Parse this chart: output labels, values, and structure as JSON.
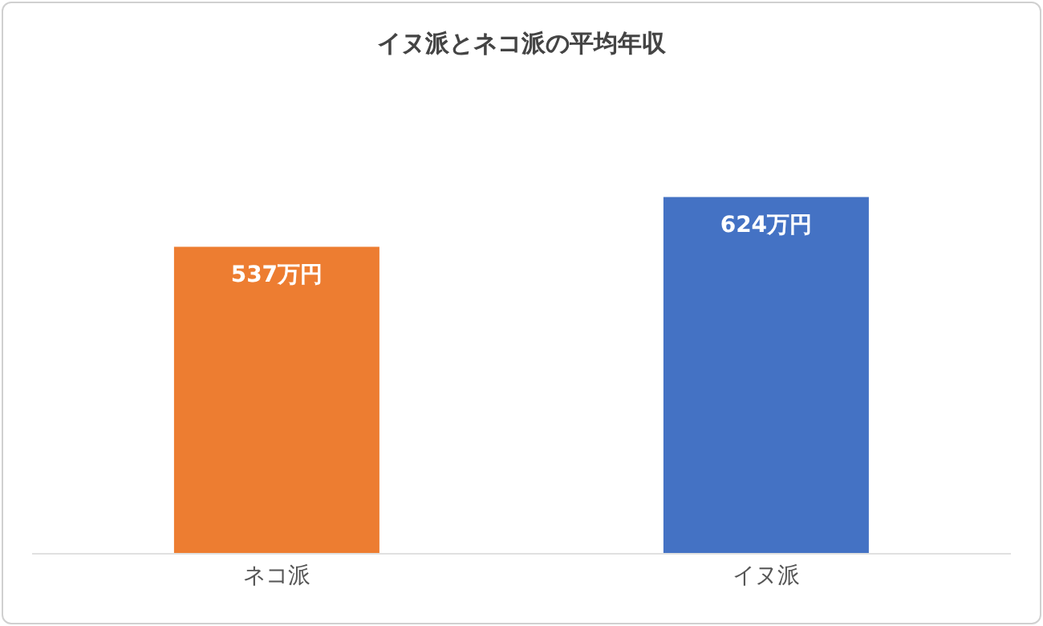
{
  "chart_data": {
    "type": "bar",
    "title": "イヌ派とネコ派の平均年収",
    "categories": [
      "ネコ派",
      "イヌ派"
    ],
    "values": [
      537,
      624
    ],
    "colors": [
      "#ed7d31",
      "#4472c4"
    ],
    "value_labels": [
      "537万円",
      "624万円"
    ],
    "tick_labels": "x"
  }
}
